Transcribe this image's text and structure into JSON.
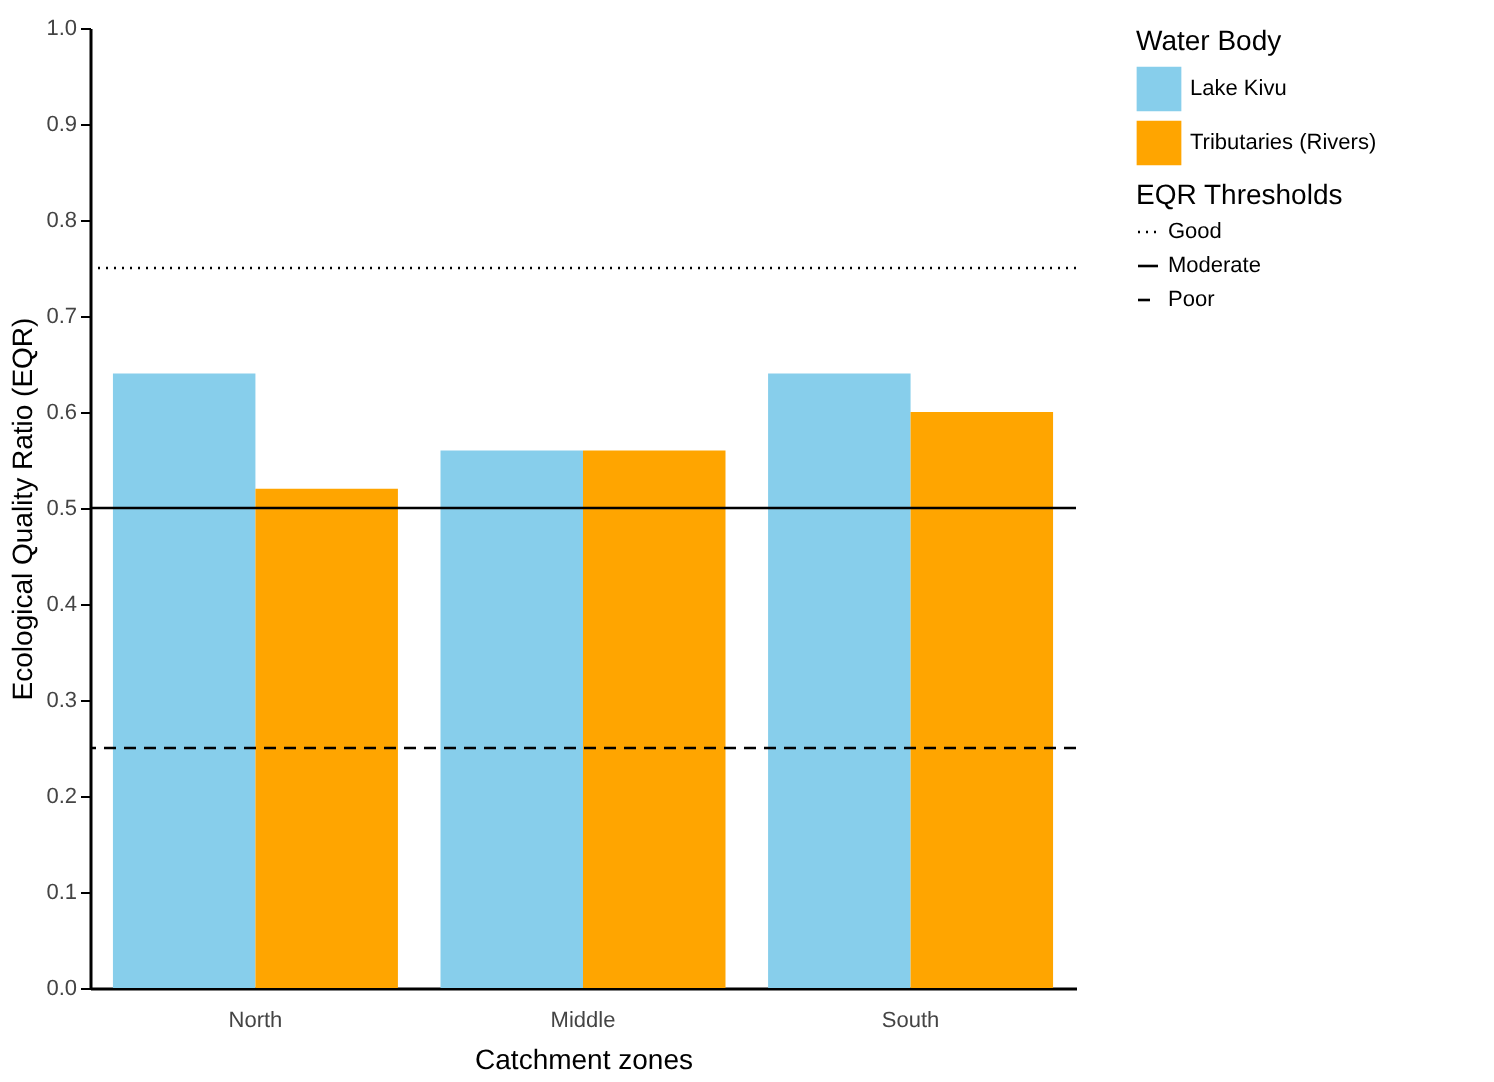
{
  "chart_data": {
    "type": "bar",
    "xlabel": "Catchment zones",
    "ylabel": "Ecological Quality Ratio (EQR)",
    "legend_title": [
      "Water Body",
      "EQR Thresholds"
    ],
    "categories": [
      "North",
      "Middle",
      "South"
    ],
    "series": [
      {
        "name": "Lake Kivu",
        "color": "#87ceeb",
        "values": [
          0.64,
          0.56,
          0.64
        ]
      },
      {
        "name": "Tributaries (Rivers)",
        "color": "#ffa500",
        "values": [
          0.52,
          0.56,
          0.6
        ]
      }
    ],
    "ylim": [
      0,
      1
    ],
    "yticks": [
      {
        "value": 0,
        "label": "0.0"
      },
      0.1,
      0.2,
      0.3,
      0.4,
      0.5,
      0.6,
      0.7,
      0.8,
      0.9,
      {
        "value": 1,
        "label": "1.0"
      }
    ],
    "ref_lines": [
      {
        "axis": "y",
        "value": 0.75,
        "label": "Good",
        "color": "#000000",
        "line_style": "dotted"
      },
      {
        "axis": "y",
        "value": 0.5,
        "label": "Moderate",
        "color": "#000000",
        "line_style": "solid"
      },
      {
        "axis": "y",
        "value": 0.25,
        "label": "Poor",
        "color": "#000000",
        "line_style": "dashed"
      }
    ],
    "grid": false,
    "legend": "right"
  }
}
